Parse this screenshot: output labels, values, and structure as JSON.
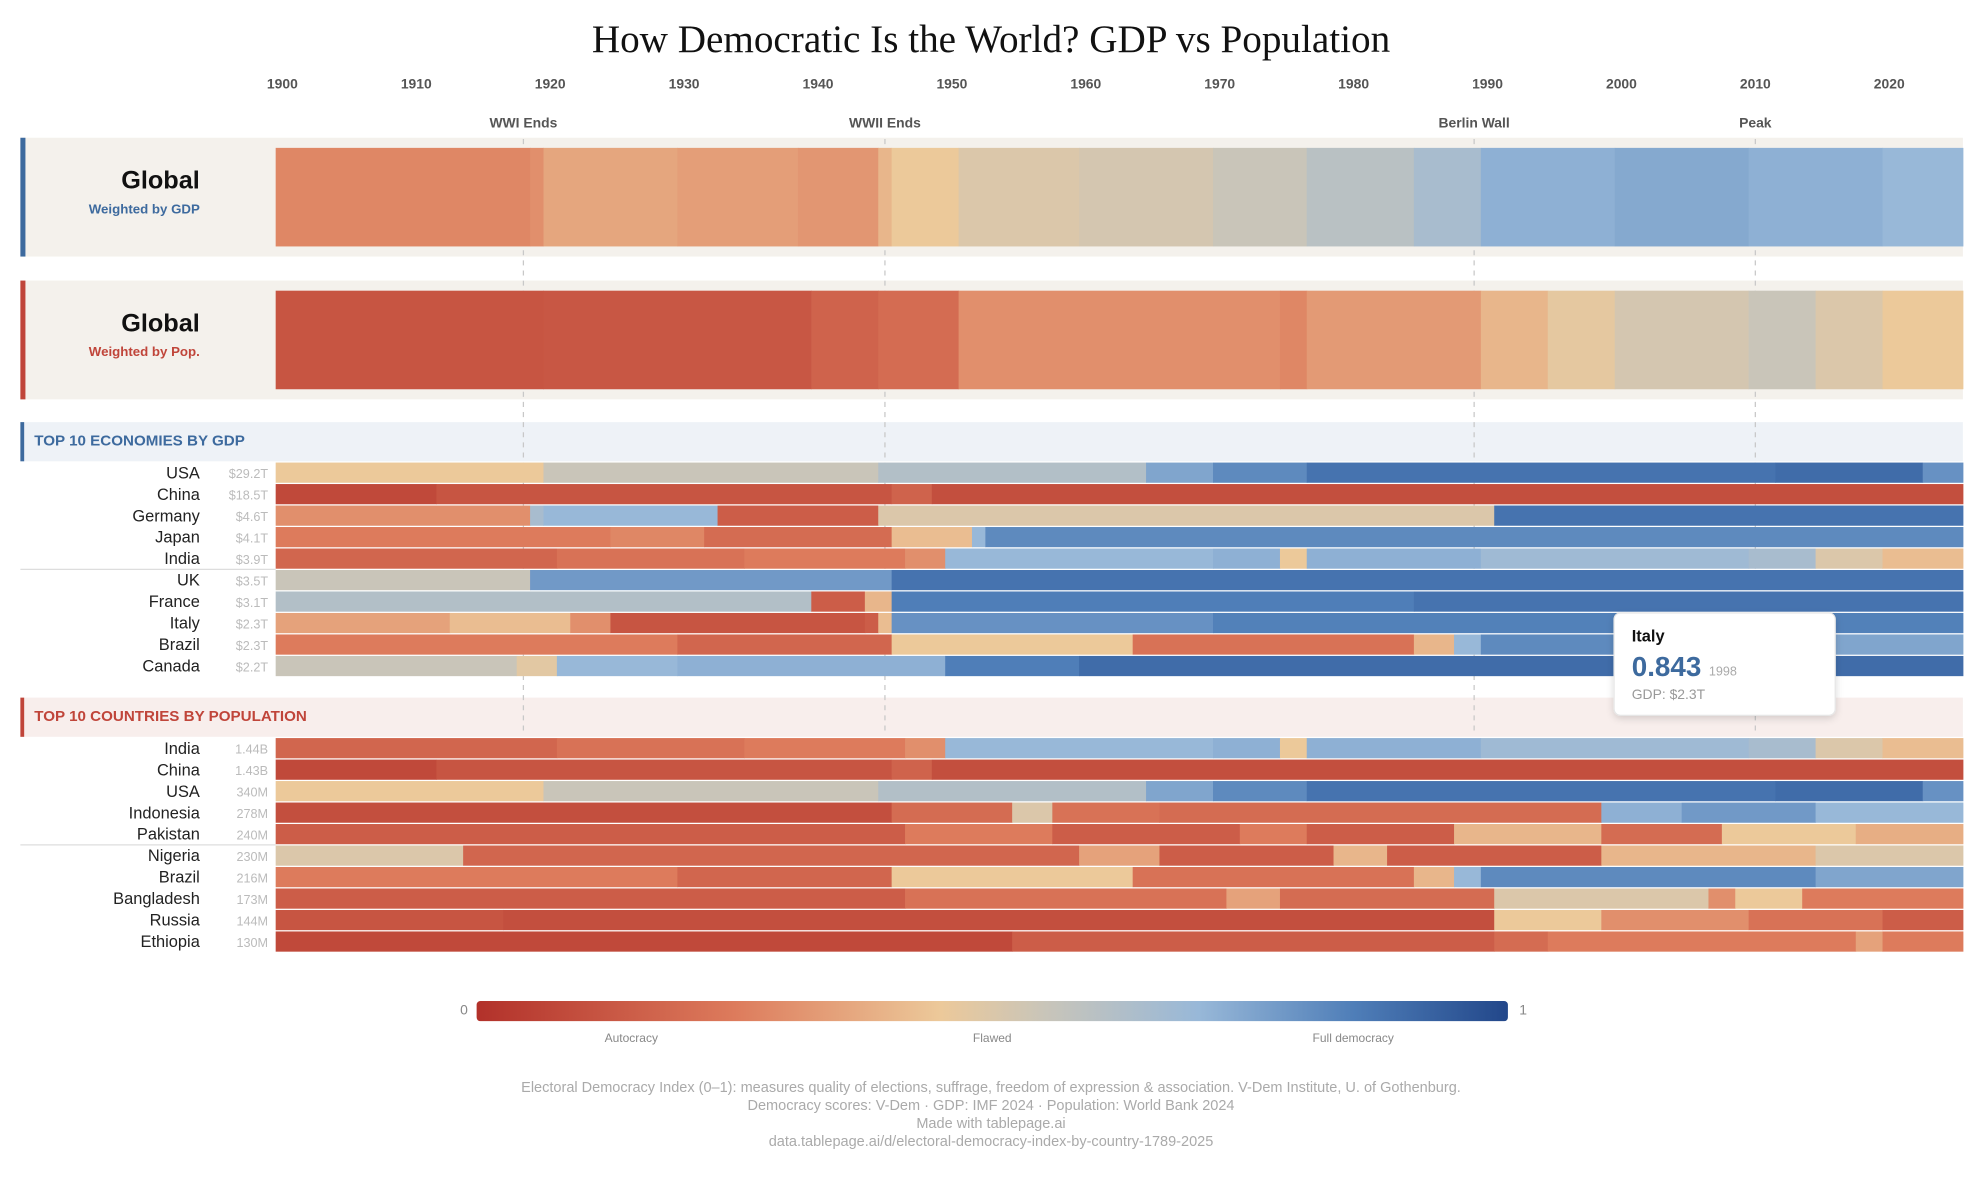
{
  "chart_data": {
    "type": "heatmap",
    "title": "How Democratic Is the World? GDP vs Population",
    "xlim": [
      1900,
      2026
    ],
    "xticks": [
      1900,
      1910,
      1920,
      1930,
      1940,
      1950,
      1960,
      1970,
      1980,
      1990,
      2000,
      2010,
      2020
    ],
    "events": [
      {
        "year": 1918,
        "label": "WWI Ends"
      },
      {
        "year": 1945,
        "label": "WWII Ends"
      },
      {
        "year": 1989,
        "label": "Berlin Wall"
      },
      {
        "year": 2010,
        "label": "Peak"
      }
    ],
    "panels": [
      {
        "name": "Global",
        "subtitle": "Weighted by GDP",
        "color": "#3d6a9e",
        "years": [
          1900,
          1919,
          1920,
          1930,
          1939,
          1945,
          1946,
          1951,
          1960,
          1970,
          1977,
          1985,
          1990,
          2000,
          2010,
          2020
        ],
        "values": [
          0.28,
          0.3,
          0.36,
          0.34,
          0.32,
          0.4,
          0.45,
          0.5,
          0.52,
          0.55,
          0.6,
          0.65,
          0.72,
          0.74,
          0.72,
          0.7
        ]
      },
      {
        "name": "Global",
        "subtitle": "Weighted by Pop.",
        "color": "#c0453a",
        "years": [
          1900,
          1920,
          1940,
          1945,
          1951,
          1975,
          1977,
          1990,
          1995,
          2000,
          2010,
          2015,
          2020
        ],
        "values": [
          0.12,
          0.13,
          0.17,
          0.2,
          0.3,
          0.28,
          0.33,
          0.4,
          0.47,
          0.52,
          0.55,
          0.5,
          0.45
        ]
      }
    ],
    "sections": [
      {
        "title": "TOP 10 ECONOMIES BY GDP",
        "color": "#3d6a9e",
        "background": "#eef2f7",
        "rows": [
          {
            "name": "USA",
            "metric": "$29.2T",
            "years": [
              1900,
              1920,
              1945,
              1965,
              1970,
              1977,
              2012,
              2023
            ],
            "values": [
              0.45,
              0.55,
              0.62,
              0.75,
              0.82,
              0.88,
              0.9,
              0.8
            ]
          },
          {
            "name": "China",
            "metric": "$18.5T",
            "years": [
              1900,
              1912,
              1946,
              1949
            ],
            "values": [
              0.08,
              0.12,
              0.17,
              0.1
            ]
          },
          {
            "name": "Germany",
            "metric": "$4.6T",
            "years": [
              1900,
              1919,
              1920,
              1933,
              1945,
              1991
            ],
            "values": [
              0.3,
              0.65,
              0.7,
              0.15,
              0.5,
              0.88
            ]
          },
          {
            "name": "Japan",
            "metric": "$4.1T",
            "years": [
              1900,
              1925,
              1932,
              1946,
              1952,
              1953
            ],
            "values": [
              0.25,
              0.28,
              0.2,
              0.42,
              0.7,
              0.82
            ]
          },
          {
            "name": "India",
            "metric": "$3.9T",
            "years": [
              1900,
              1921,
              1935,
              1947,
              1950,
              1970,
              1975,
              1977,
              1990,
              2010,
              2015,
              2020
            ],
            "values": [
              0.18,
              0.22,
              0.25,
              0.3,
              0.7,
              0.72,
              0.45,
              0.72,
              0.68,
              0.65,
              0.5,
              0.42
            ]
          },
          {
            "name": "UK",
            "metric": "$3.5T",
            "years": [
              1900,
              1919,
              1946
            ],
            "values": [
              0.55,
              0.78,
              0.88
            ]
          },
          {
            "name": "France",
            "metric": "$3.1T",
            "years": [
              1900,
              1940,
              1944,
              1946,
              1985
            ],
            "values": [
              0.62,
              0.15,
              0.4,
              0.85,
              0.88
            ]
          },
          {
            "name": "Italy",
            "metric": "$2.3T",
            "years": [
              1900,
              1913,
              1922,
              1925,
              1944,
              1945,
              1946,
              1970
            ],
            "values": [
              0.35,
              0.42,
              0.3,
              0.12,
              0.15,
              0.42,
              0.8,
              0.843
            ]
          },
          {
            "name": "Brazil",
            "metric": "$2.3T",
            "years": [
              1900,
              1930,
              1946,
              1964,
              1985,
              1988,
              1990,
              2015
            ],
            "values": [
              0.25,
              0.18,
              0.45,
              0.22,
              0.4,
              0.7,
              0.82,
              0.75
            ]
          },
          {
            "name": "Canada",
            "metric": "$2.2T",
            "years": [
              1900,
              1918,
              1921,
              1930,
              1950,
              1960
            ],
            "values": [
              0.55,
              0.48,
              0.7,
              0.72,
              0.85,
              0.9
            ]
          }
        ]
      },
      {
        "title": "TOP 10 COUNTRIES BY POPULATION",
        "color": "#c0453a",
        "background": "#f8eeec",
        "rows": [
          {
            "name": "India",
            "metric": "1.44B",
            "years": [
              1900,
              1921,
              1935,
              1947,
              1950,
              1970,
              1975,
              1977,
              1990,
              2010,
              2015,
              2020
            ],
            "values": [
              0.18,
              0.22,
              0.25,
              0.3,
              0.7,
              0.72,
              0.45,
              0.72,
              0.68,
              0.65,
              0.5,
              0.42
            ]
          },
          {
            "name": "China",
            "metric": "1.43B",
            "years": [
              1900,
              1912,
              1946,
              1949
            ],
            "values": [
              0.08,
              0.12,
              0.17,
              0.1
            ]
          },
          {
            "name": "USA",
            "metric": "340M",
            "years": [
              1900,
              1920,
              1945,
              1965,
              1970,
              1977,
              2012,
              2023
            ],
            "values": [
              0.45,
              0.55,
              0.62,
              0.75,
              0.82,
              0.88,
              0.9,
              0.8
            ]
          },
          {
            "name": "Indonesia",
            "metric": "278M",
            "years": [
              1900,
              1946,
              1955,
              1958,
              1966,
              1999,
              2005,
              2015
            ],
            "values": [
              0.1,
              0.2,
              0.5,
              0.22,
              0.2,
              0.72,
              0.78,
              0.7
            ]
          },
          {
            "name": "Pakistan",
            "metric": "240M",
            "years": [
              1900,
              1947,
              1958,
              1972,
              1977,
              1988,
              1999,
              2008,
              2018
            ],
            "values": [
              0.15,
              0.25,
              0.15,
              0.25,
              0.15,
              0.4,
              0.2,
              0.45,
              0.38
            ]
          },
          {
            "name": "Nigeria",
            "metric": "230M",
            "years": [
              1900,
              1914,
              1960,
              1966,
              1979,
              1983,
              1999,
              2015
            ],
            "values": [
              0.5,
              0.18,
              0.35,
              0.15,
              0.4,
              0.15,
              0.4,
              0.5
            ]
          },
          {
            "name": "Brazil",
            "metric": "216M",
            "years": [
              1900,
              1930,
              1946,
              1964,
              1985,
              1988,
              1990,
              2015
            ],
            "values": [
              0.25,
              0.18,
              0.45,
              0.22,
              0.4,
              0.7,
              0.82,
              0.75
            ]
          },
          {
            "name": "Bangladesh",
            "metric": "173M",
            "years": [
              1900,
              1947,
              1971,
              1975,
              1991,
              2007,
              2009,
              2014
            ],
            "values": [
              0.15,
              0.22,
              0.35,
              0.2,
              0.5,
              0.3,
              0.45,
              0.25
            ]
          },
          {
            "name": "Russia",
            "metric": "144M",
            "years": [
              1900,
              1917,
              1991,
              1999,
              2010,
              2020
            ],
            "values": [
              0.12,
              0.1,
              0.45,
              0.3,
              0.22,
              0.15
            ]
          },
          {
            "name": "Ethiopia",
            "metric": "130M",
            "years": [
              1900,
              1955,
              1991,
              1995,
              2018,
              2020
            ],
            "values": [
              0.08,
              0.15,
              0.2,
              0.25,
              0.35,
              0.25
            ]
          }
        ]
      }
    ],
    "clim": [
      0,
      1
    ],
    "colorscale": [
      [
        0,
        "#b2312a"
      ],
      [
        0.25,
        "#dd7b5c"
      ],
      [
        0.45,
        "#ecc99a"
      ],
      [
        0.55,
        "#c9c5b9"
      ],
      [
        0.7,
        "#98b8d8"
      ],
      [
        0.85,
        "#4f7eb8"
      ],
      [
        1,
        "#22478a"
      ]
    ],
    "colorbar_labels": [
      {
        "value": 0.15,
        "label": "Autocracy"
      },
      {
        "value": 0.5,
        "label": "Flawed"
      },
      {
        "value": 0.85,
        "label": "Full democracy"
      }
    ],
    "tooltip": {
      "name": "Italy",
      "value": 0.843,
      "year": 1998,
      "detail": "GDP: $2.3T"
    },
    "notes": [
      "Electoral Democracy Index (0–1): measures quality of elections, suffrage, freedom of expression & association. V-Dem Institute, U. of Gothenburg.",
      "Democracy scores: V-Dem · GDP: IMF 2024 · Population: World Bank 2024",
      "Made with tablepage.ai",
      "data.tablepage.ai/d/electoral-democracy-index-by-country-1789-2025"
    ]
  }
}
